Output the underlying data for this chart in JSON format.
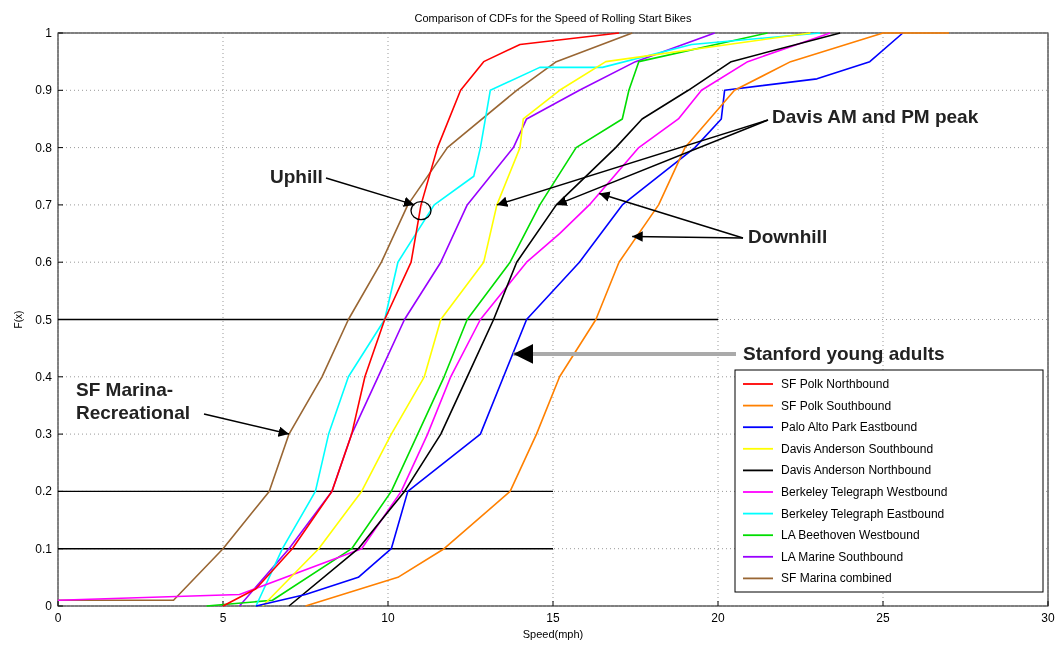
{
  "chart_data": {
    "type": "line",
    "title": "Comparison of CDFs for the Speed of Rolling Start Bikes",
    "xlabel": "Speed(mph)",
    "ylabel": "F(x)",
    "xlim": [
      0,
      30
    ],
    "xticks": [
      0,
      5,
      10,
      15,
      20,
      25,
      30
    ],
    "ylim": [
      0,
      1
    ],
    "yticks": [
      0,
      0.1,
      0.2,
      0.3,
      0.4,
      0.5,
      0.6,
      0.7,
      0.8,
      0.9,
      1
    ],
    "grid": true,
    "legend": "bottom right",
    "line_style": "solid",
    "marker": "none",
    "series": [
      {
        "name": "SF Polk Northbound",
        "color": "#ff0000",
        "x": [
          5.0,
          6.0,
          7.1,
          8.3,
          8.9,
          9.3,
          9.9,
          10.7,
          11.0,
          11.5,
          12.2,
          12.9,
          14.0,
          17.0
        ],
        "values": [
          0,
          0.03,
          0.1,
          0.2,
          0.3,
          0.4,
          0.5,
          0.6,
          0.7,
          0.8,
          0.9,
          0.95,
          0.98,
          1
        ]
      },
      {
        "name": "SF Polk Southbound",
        "color": "#ff8000",
        "x": [
          7.5,
          10.3,
          11.7,
          13.7,
          14.5,
          15.2,
          16.3,
          17.0,
          18.2,
          19.0,
          20.5,
          22.2,
          25.0,
          27.0
        ],
        "values": [
          0,
          0.05,
          0.1,
          0.2,
          0.3,
          0.4,
          0.5,
          0.6,
          0.7,
          0.8,
          0.9,
          0.95,
          1,
          1
        ]
      },
      {
        "name": "Palo Alto Park Eastbound",
        "color": "#0000ff",
        "x": [
          6.0,
          7.5,
          9.1,
          10.1,
          10.6,
          12.8,
          13.5,
          14.2,
          15.8,
          17.1,
          19.3,
          20.1,
          20.2,
          23.0,
          24.6,
          25.6
        ],
        "values": [
          0,
          0.02,
          0.05,
          0.1,
          0.2,
          0.3,
          0.4,
          0.5,
          0.6,
          0.7,
          0.8,
          0.85,
          0.9,
          0.92,
          0.95,
          1
        ]
      },
      {
        "name": "Davis Anderson Southbound",
        "color": "#ffff00",
        "x": [
          6.2,
          7.9,
          9.2,
          10.1,
          11.1,
          11.6,
          12.9,
          13.3,
          14.0,
          14.1,
          15.2,
          16.6,
          22.8
        ],
        "values": [
          0,
          0.1,
          0.2,
          0.3,
          0.4,
          0.5,
          0.6,
          0.7,
          0.8,
          0.85,
          0.9,
          0.95,
          1
        ]
      },
      {
        "name": "Davis Anderson Northbound",
        "color": "#000000",
        "x": [
          7.0,
          9.1,
          10.5,
          11.6,
          12.4,
          13.2,
          13.9,
          15.1,
          16.9,
          17.7,
          19.1,
          20.4,
          23.7
        ],
        "values": [
          0,
          0.1,
          0.2,
          0.3,
          0.4,
          0.5,
          0.6,
          0.7,
          0.8,
          0.85,
          0.9,
          0.95,
          1
        ]
      },
      {
        "name": "Berkeley Telegraph Westbound",
        "color": "#ff00ff",
        "x": [
          0,
          5.5,
          9.2,
          10.4,
          11.2,
          11.9,
          12.8,
          14.2,
          15.2,
          16.1,
          17.6,
          18.8,
          19.5,
          20.9,
          23.4
        ],
        "values": [
          0.01,
          0.02,
          0.1,
          0.2,
          0.3,
          0.4,
          0.5,
          0.6,
          0.65,
          0.7,
          0.8,
          0.85,
          0.9,
          0.95,
          1
        ]
      },
      {
        "name": "Berkeley Telegraph Eastbound",
        "color": "#00ffff",
        "x": [
          6.0,
          6.8,
          7.8,
          8.2,
          8.8,
          9.9,
          10.3,
          11.4,
          12.6,
          12.8,
          13.1,
          14.6,
          16.5,
          19.2,
          23.1
        ],
        "values": [
          0,
          0.1,
          0.2,
          0.3,
          0.4,
          0.5,
          0.6,
          0.7,
          0.75,
          0.8,
          0.9,
          0.94,
          0.94,
          0.98,
          1
        ]
      },
      {
        "name": "LA Beethoven Westbound",
        "color": "#00dd00",
        "x": [
          4.5,
          6.5,
          8.9,
          10.1,
          10.9,
          11.7,
          12.4,
          13.7,
          14.6,
          15.7,
          17.1,
          17.3,
          17.6,
          21.5
        ],
        "values": [
          0,
          0.01,
          0.1,
          0.2,
          0.3,
          0.4,
          0.5,
          0.6,
          0.7,
          0.8,
          0.85,
          0.9,
          0.95,
          1
        ]
      },
      {
        "name": "LA Marine Southbound",
        "color": "#9900ff",
        "x": [
          5.5,
          7.0,
          8.3,
          8.9,
          9.7,
          10.5,
          11.6,
          12.4,
          13.8,
          14.2,
          15.8,
          17.5,
          19.9
        ],
        "values": [
          0,
          0.1,
          0.2,
          0.3,
          0.4,
          0.5,
          0.6,
          0.7,
          0.8,
          0.85,
          0.9,
          0.95,
          1
        ]
      },
      {
        "name": "SF Marina combined",
        "color": "#996633",
        "x": [
          0,
          3.5,
          5.0,
          6.4,
          7.0,
          8.0,
          8.8,
          9.8,
          10.6,
          11.8,
          13.9,
          15.1,
          17.4
        ],
        "values": [
          0.01,
          0.01,
          0.1,
          0.2,
          0.3,
          0.4,
          0.5,
          0.6,
          0.7,
          0.8,
          0.9,
          0.95,
          1
        ]
      },
      {
        "color": "#000000",
        "x": [
          0,
          20
        ],
        "values": [
          0.5,
          0.5
        ]
      },
      {
        "color": "#000000",
        "x": [
          0,
          15
        ],
        "values": [
          0.2,
          0.2
        ]
      },
      {
        "color": "#000000",
        "x": [
          0,
          15
        ],
        "values": [
          0.1,
          0.1
        ]
      }
    ],
    "annotations": [
      {
        "text": "Uphill",
        "x": 10.8,
        "y": 0.7
      },
      {
        "text": "Davis AM and PM peak",
        "x": 15.1,
        "y": 0.7
      },
      {
        "text": "Downhill",
        "x": 16.4,
        "y": 0.72
      },
      {
        "text": "Stanford young adults",
        "x": 13.8,
        "y": 0.44
      },
      {
        "text": "SF Marina-\nRecreational",
        "x": 7.0,
        "y": 0.3
      }
    ]
  }
}
